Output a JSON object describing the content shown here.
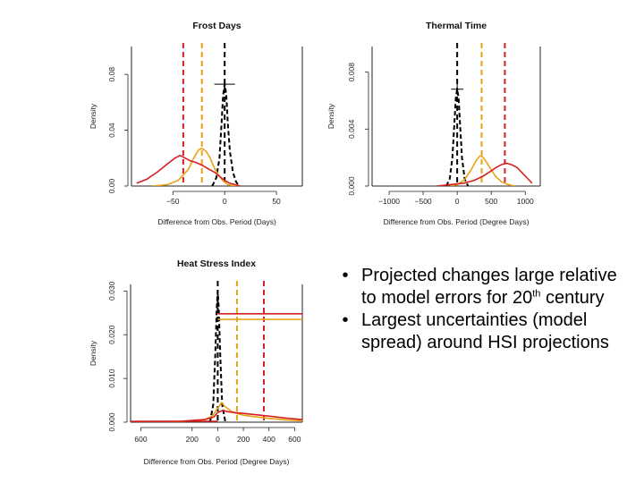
{
  "chart_data": [
    {
      "type": "line",
      "title": "Frost Days",
      "xlabel": "Difference from Obs. Period (Days)",
      "ylabel": "Density",
      "xlim": [
        -90,
        75
      ],
      "ylim": [
        0,
        0.1
      ],
      "xticks": [
        -50,
        0,
        50
      ],
      "xtick_labels": [
        "−50",
        "0",
        "50"
      ],
      "yticks": [
        0,
        0.04,
        0.08
      ],
      "ytick_labels": [
        "0.00",
        "0.04",
        "0.08"
      ],
      "grid": false,
      "legend": "none",
      "series": [
        {
          "color": "#000000",
          "style": "dashed",
          "x": [
            -12,
            -8,
            -5,
            -3,
            -1.5,
            0,
            1.5,
            3,
            5,
            8,
            11,
            14
          ],
          "y": [
            0,
            0.006,
            0.02,
            0.045,
            0.065,
            0.073,
            0.066,
            0.045,
            0.025,
            0.01,
            0.003,
            0
          ]
        },
        {
          "color": "#e8a317",
          "style": "solid",
          "x": [
            -70,
            -55,
            -45,
            -35,
            -30,
            -25,
            -22,
            -18,
            -14,
            -10,
            -6,
            -2,
            3,
            10,
            15
          ],
          "y": [
            0,
            0.001,
            0.004,
            0.012,
            0.02,
            0.026,
            0.027,
            0.025,
            0.02,
            0.013,
            0.008,
            0.004,
            0.001,
            0,
            0
          ]
        },
        {
          "color": "#d42020",
          "style": "solid",
          "x": [
            -85,
            -75,
            -65,
            -55,
            -48,
            -43,
            -38,
            -33,
            -28,
            -22,
            -15,
            -10,
            -5,
            0,
            5,
            10,
            15
          ],
          "y": [
            0.002,
            0.005,
            0.01,
            0.016,
            0.02,
            0.022,
            0.02,
            0.018,
            0.017,
            0.015,
            0.012,
            0.01,
            0.007,
            0.004,
            0.002,
            0.001,
            0
          ]
        }
      ],
      "vlines": [
        {
          "x": -40,
          "color": "#d42020"
        },
        {
          "x": -22,
          "color": "#e8a317"
        },
        {
          "x": 0,
          "color": "#000000"
        }
      ],
      "marker": {
        "x": 0,
        "y": 0.073,
        "half_width": 10
      }
    },
    {
      "type": "line",
      "title": "Thermal Time",
      "xlabel": "Difference from Obs. Period (Degree Days)",
      "ylabel": "Density",
      "xlim": [
        -1250,
        1220
      ],
      "ylim": [
        0,
        0.0098
      ],
      "xticks": [
        -1000,
        -500,
        0,
        500,
        1000
      ],
      "xtick_labels": [
        "−1000",
        "−500",
        "0",
        "500",
        "1000"
      ],
      "yticks": [
        0,
        0.004,
        0.008
      ],
      "ytick_labels": [
        "0.000",
        "0.004",
        "0.008"
      ],
      "grid": false,
      "legend": "none",
      "series": [
        {
          "color": "#000000",
          "style": "dashed",
          "x": [
            -160,
            -110,
            -70,
            -40,
            -20,
            0,
            20,
            40,
            70,
            110,
            160
          ],
          "y": [
            0,
            0.0005,
            0.002,
            0.0045,
            0.0062,
            0.0068,
            0.0062,
            0.0045,
            0.002,
            0.0005,
            0
          ]
        },
        {
          "color": "#e8a317",
          "style": "solid",
          "x": [
            -100,
            0,
            100,
            200,
            280,
            330,
            360,
            400,
            480,
            560,
            650,
            750,
            850
          ],
          "y": [
            0,
            0.0001,
            0.0004,
            0.0011,
            0.0018,
            0.0021,
            0.0021,
            0.0019,
            0.0013,
            0.0007,
            0.0003,
            0.0001,
            0
          ]
        },
        {
          "color": "#d42020",
          "style": "solid",
          "x": [
            -300,
            -100,
            100,
            250,
            380,
            480,
            570,
            650,
            720,
            800,
            880,
            960,
            1040,
            1100
          ],
          "y": [
            0,
            0.0001,
            0.0002,
            0.0004,
            0.0007,
            0.001,
            0.0013,
            0.0015,
            0.0016,
            0.0015,
            0.0013,
            0.0009,
            0.0005,
            0.0002
          ]
        }
      ],
      "vlines": [
        {
          "x": 0,
          "color": "#000000"
        },
        {
          "x": 360,
          "color": "#e8a317"
        },
        {
          "x": 700,
          "color": "#d42020"
        }
      ],
      "marker": {
        "x": 0,
        "y": 0.0068,
        "half_width": 90
      }
    },
    {
      "type": "line",
      "title": "Heat Stress Index",
      "xlabel": "Difference from Obs. Period (Degree Days)",
      "ylabel": "Density",
      "xlim": [
        -680,
        660
      ],
      "ylim": [
        0,
        0.0315
      ],
      "xticks": [
        -600,
        -200,
        0,
        200,
        400,
        600
      ],
      "xtick_labels": [
        "600",
        "200",
        "0",
        "200",
        "400",
        "600"
      ],
      "yticks": [
        0,
        0.01,
        0.02,
        0.03
      ],
      "ytick_labels": [
        "0.000",
        "0.010",
        "0.020",
        "0.030"
      ],
      "grid": false,
      "legend": "none",
      "series": [
        {
          "color": "#000000",
          "style": "dashed",
          "x": [
            -60,
            -35,
            -20,
            -8,
            0,
            8,
            20,
            35,
            60
          ],
          "y": [
            0,
            0.004,
            0.015,
            0.026,
            0.03,
            0.026,
            0.015,
            0.004,
            0
          ]
        },
        {
          "color": "#e8a317",
          "style": "solid",
          "x": [
            -680,
            -300,
            -100,
            -40,
            0,
            30,
            60,
            120,
            200,
            300,
            420,
            540,
            660
          ],
          "y": [
            0,
            0.0001,
            0.0006,
            0.0015,
            0.0032,
            0.0045,
            0.0035,
            0.0022,
            0.0016,
            0.0012,
            0.0008,
            0.0005,
            0.0003
          ]
        },
        {
          "color": "#d42020",
          "style": "solid",
          "x": [
            -680,
            -300,
            -100,
            -30,
            0,
            40,
            80,
            130,
            200,
            300,
            420,
            540,
            660
          ],
          "y": [
            0.0001,
            0.0002,
            0.0006,
            0.0012,
            0.0022,
            0.0027,
            0.0024,
            0.0022,
            0.002,
            0.0017,
            0.0013,
            0.0009,
            0.0006
          ]
        },
        {
          "color": "#e8a317",
          "style": "solid",
          "x": [
            0,
            660
          ],
          "y": [
            0.0235,
            0.0235
          ]
        },
        {
          "color": "#d42020",
          "style": "solid",
          "x": [
            0,
            660
          ],
          "y": [
            0.0248,
            0.0248
          ]
        },
        {
          "color": "#d42020",
          "style": "solid",
          "x": [
            -680,
            0
          ],
          "y": [
            0.0002,
            0.0002
          ]
        }
      ],
      "vlines": [
        {
          "x": 0,
          "color": "#000000"
        },
        {
          "x": 150,
          "color": "#e8a317"
        },
        {
          "x": 360,
          "color": "#d42020"
        }
      ]
    }
  ],
  "bullets": {
    "item1_part1": "Projected changes large relative to model errors for 20",
    "item1_sup": "th",
    "item1_part2": " century",
    "item2": "Largest uncertainties (model spread) around HSI projections"
  }
}
